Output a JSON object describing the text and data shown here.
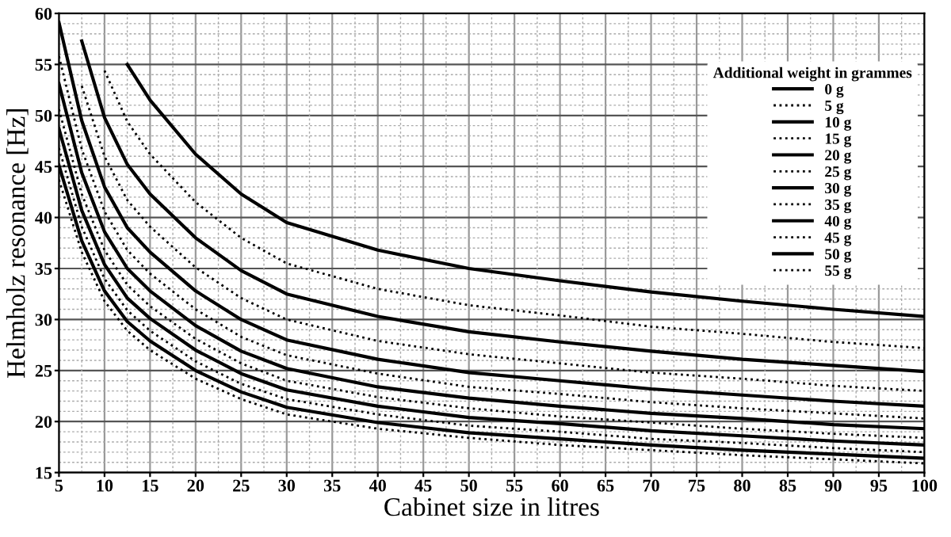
{
  "chart_data": {
    "type": "line",
    "xlabel": "Cabinet size in litres",
    "ylabel": "Helmholz resonance [Hz]",
    "legend_title": "Additional weight in grammes",
    "x": [
      5,
      7.5,
      10,
      12.5,
      15,
      20,
      25,
      30,
      40,
      50,
      60,
      70,
      80,
      90,
      100
    ],
    "xlim": [
      5,
      100
    ],
    "xticks": [
      5,
      10,
      15,
      20,
      25,
      30,
      35,
      40,
      45,
      50,
      55,
      60,
      65,
      70,
      75,
      80,
      85,
      90,
      95,
      100
    ],
    "ylim": [
      15,
      60
    ],
    "yticks": [
      15,
      20,
      25,
      30,
      35,
      40,
      45,
      50,
      55,
      60
    ],
    "grid": true,
    "legend": "right",
    "marker": "none",
    "series": [
      {
        "name": "0 g",
        "color": "#000000",
        "line_style": "solid",
        "values": [
          null,
          null,
          null,
          55.0,
          51.5,
          46.2,
          42.3,
          39.5,
          36.8,
          35.0,
          33.8,
          32.7,
          31.8,
          31.0,
          30.3
        ]
      },
      {
        "name": "5 g",
        "color": "#000000",
        "line_style": "dotted",
        "values": [
          null,
          null,
          54.4,
          49.4,
          46.2,
          41.5,
          38.0,
          35.5,
          33.0,
          31.4,
          30.4,
          29.3,
          28.6,
          27.8,
          27.2
        ]
      },
      {
        "name": "10 g",
        "color": "#000000",
        "line_style": "solid",
        "values": [
          null,
          57.3,
          49.8,
          45.2,
          42.3,
          38.0,
          34.8,
          32.5,
          30.3,
          28.8,
          27.8,
          26.9,
          26.1,
          25.5,
          24.9
        ]
      },
      {
        "name": "15 g",
        "color": "#000000",
        "line_style": "dotted",
        "values": [
          null,
          52.9,
          46.0,
          41.7,
          39.1,
          35.1,
          32.1,
          30.0,
          27.9,
          26.6,
          25.7,
          24.8,
          24.2,
          23.5,
          23.0
        ]
      },
      {
        "name": "20 g",
        "color": "#000000",
        "line_style": "solid",
        "values": [
          59.1,
          49.5,
          43.0,
          39.0,
          36.6,
          32.8,
          30.0,
          28.0,
          26.1,
          24.8,
          24.0,
          23.2,
          22.6,
          22.0,
          21.5
        ]
      },
      {
        "name": "25 g",
        "color": "#000000",
        "line_style": "dotted",
        "values": [
          55.8,
          46.7,
          40.6,
          36.8,
          34.5,
          31.0,
          28.3,
          26.5,
          24.7,
          23.4,
          22.7,
          21.9,
          21.3,
          20.8,
          20.3
        ]
      },
      {
        "name": "30 g",
        "color": "#000000",
        "line_style": "solid",
        "values": [
          53.1,
          44.4,
          38.6,
          35.0,
          32.8,
          29.4,
          26.9,
          25.2,
          23.4,
          22.3,
          21.5,
          20.8,
          20.3,
          19.7,
          19.3
        ]
      },
      {
        "name": "35 g",
        "color": "#000000",
        "line_style": "dotted",
        "values": [
          50.6,
          42.3,
          36.8,
          33.4,
          31.3,
          28.1,
          25.7,
          24.0,
          22.4,
          21.3,
          20.5,
          19.9,
          19.3,
          18.8,
          18.4
        ]
      },
      {
        "name": "40 g",
        "color": "#000000",
        "line_style": "solid",
        "values": [
          48.7,
          40.7,
          35.4,
          32.1,
          30.1,
          27.0,
          24.7,
          23.1,
          21.5,
          20.4,
          19.8,
          19.1,
          18.6,
          18.1,
          17.7
        ]
      },
      {
        "name": "45 g",
        "color": "#000000",
        "line_style": "dotted",
        "values": [
          46.8,
          39.1,
          34.0,
          30.9,
          28.9,
          25.9,
          23.7,
          22.2,
          20.7,
          19.6,
          19.0,
          18.3,
          17.9,
          17.4,
          17.0
        ]
      },
      {
        "name": "50 g",
        "color": "#000000",
        "line_style": "solid",
        "values": [
          45.1,
          37.7,
          32.8,
          29.8,
          27.9,
          25.0,
          22.9,
          21.4,
          19.9,
          18.9,
          18.3,
          17.7,
          17.2,
          16.8,
          16.4
        ]
      },
      {
        "name": "55 g",
        "color": "#000000",
        "line_style": "dotted",
        "values": [
          43.7,
          36.6,
          31.8,
          28.9,
          27.0,
          24.2,
          22.2,
          20.7,
          19.3,
          18.4,
          17.7,
          17.2,
          16.7,
          16.3,
          15.9
        ]
      }
    ]
  }
}
